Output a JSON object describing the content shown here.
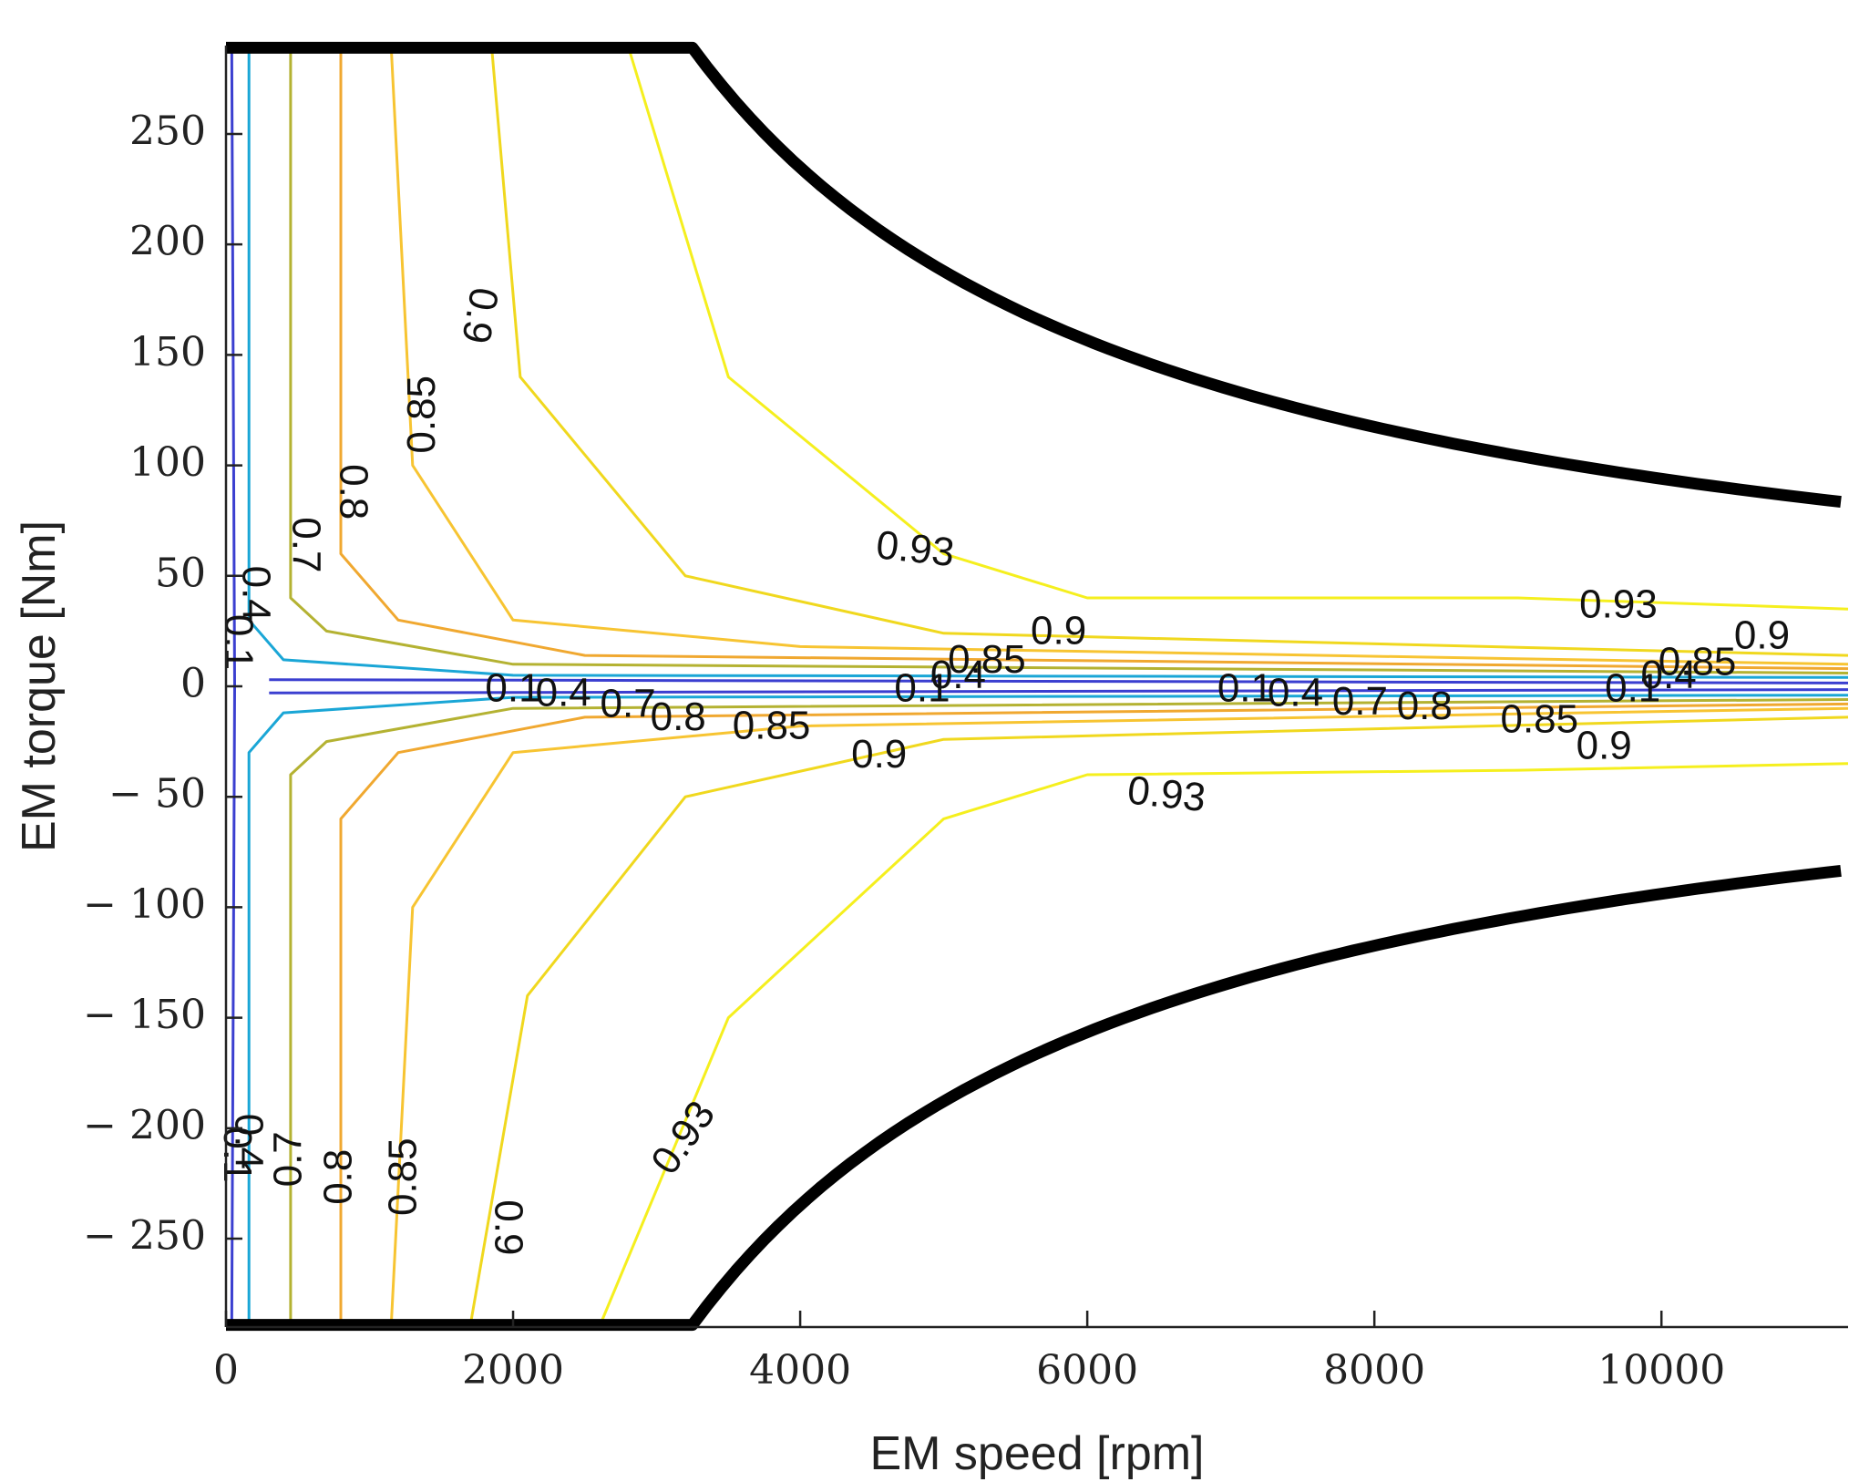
{
  "chart_data": {
    "type": "contour",
    "xlabel": "EM speed [rpm]",
    "ylabel": "EM torque [Nm]",
    "xlim": [
      0,
      11300
    ],
    "ylim": [
      -290,
      290
    ],
    "xticks": [
      0,
      2000,
      4000,
      6000,
      8000,
      10000
    ],
    "xtick_labels": [
      "0",
      "2000",
      "4000",
      "6000",
      "8000",
      "10000"
    ],
    "yticks": [
      250,
      200,
      150,
      100,
      50,
      0,
      -50,
      -100,
      -150,
      -200,
      -250
    ],
    "ytick_labels": [
      "250",
      "200",
      "150",
      "100",
      "50",
      "0",
      "− 50",
      "− 100",
      "− 150",
      "− 200",
      "− 250"
    ],
    "contour_levels": [
      0.1,
      0.4,
      0.7,
      0.8,
      0.85,
      0.9,
      0.93
    ],
    "level_colors": {
      "0.1": "#3b3fd0",
      "0.4": "#1aa6d6",
      "0.7": "#b4b232",
      "0.8": "#f0a830",
      "0.85": "#f7c432",
      "0.9": "#f0d81e",
      "0.93": "#f5ef1e"
    },
    "contours": [
      {
        "level": 0.1,
        "torque": [
          [
            0,
            290
          ],
          [
            40,
            290
          ],
          [
            60,
            0
          ],
          [
            40,
            -290
          ],
          [
            0,
            -290
          ]
        ],
        "center": [
          [
            300,
            3
          ],
          [
            11300,
            1.5
          ]
        ],
        "center_low": [
          [
            300,
            -3
          ],
          [
            11300,
            -1.5
          ]
        ]
      },
      {
        "level": 0.4,
        "speed_pos": [
          [
            160,
            290
          ],
          [
            160,
            30
          ],
          [
            400,
            12
          ],
          [
            2000,
            5
          ],
          [
            11300,
            4
          ]
        ],
        "speed_neg": [
          [
            160,
            -290
          ],
          [
            160,
            -30
          ],
          [
            400,
            -12
          ],
          [
            2000,
            -5
          ],
          [
            11300,
            -4
          ]
        ]
      },
      {
        "level": 0.7,
        "speed_pos": [
          [
            450,
            290
          ],
          [
            450,
            40
          ],
          [
            700,
            25
          ],
          [
            2000,
            10
          ],
          [
            11300,
            6
          ]
        ],
        "speed_neg": [
          [
            450,
            -290
          ],
          [
            450,
            -40
          ],
          [
            700,
            -25
          ],
          [
            2000,
            -10
          ],
          [
            11300,
            -6
          ]
        ]
      },
      {
        "level": 0.8,
        "speed_pos": [
          [
            800,
            290
          ],
          [
            800,
            60
          ],
          [
            1200,
            30
          ],
          [
            2500,
            14
          ],
          [
            11300,
            8
          ]
        ],
        "speed_neg": [
          [
            800,
            -290
          ],
          [
            800,
            -60
          ],
          [
            1200,
            -30
          ],
          [
            2500,
            -14
          ],
          [
            11300,
            -8
          ]
        ]
      },
      {
        "level": 0.85,
        "speed_pos": [
          [
            1150,
            290
          ],
          [
            1300,
            100
          ],
          [
            2000,
            30
          ],
          [
            4000,
            18
          ],
          [
            11300,
            10
          ]
        ],
        "speed_neg": [
          [
            1150,
            -290
          ],
          [
            1300,
            -100
          ],
          [
            2000,
            -30
          ],
          [
            4000,
            -18
          ],
          [
            11300,
            -10
          ]
        ]
      },
      {
        "level": 0.9,
        "speed_pos": [
          [
            1850,
            290
          ],
          [
            2050,
            140
          ],
          [
            3200,
            50
          ],
          [
            5000,
            24
          ],
          [
            11300,
            14
          ]
        ],
        "speed_neg": [
          [
            1700,
            -290
          ],
          [
            2100,
            -140
          ],
          [
            3200,
            -50
          ],
          [
            5000,
            -24
          ],
          [
            11300,
            -14
          ]
        ]
      },
      {
        "level": 0.93,
        "speed_pos": [
          [
            2800,
            290
          ],
          [
            3500,
            140
          ],
          [
            5000,
            60
          ],
          [
            6000,
            40
          ],
          [
            9000,
            40
          ],
          [
            11300,
            35
          ]
        ],
        "speed_neg": [
          [
            2600,
            -290
          ],
          [
            3500,
            -150
          ],
          [
            5000,
            -60
          ],
          [
            6000,
            -40
          ],
          [
            9000,
            -38
          ],
          [
            11300,
            -35
          ]
        ]
      }
    ],
    "max_torque_envelope": {
      "corner_speed": 3250,
      "max_torque": 289,
      "max_speed": 11300
    },
    "contour_labels": [
      {
        "text": "0.9",
        "x": 1750,
        "y": 168,
        "rotate": 100
      },
      {
        "text": "0.85",
        "x": 1380,
        "y": 123,
        "rotate": -90
      },
      {
        "text": "0.8",
        "x": 870,
        "y": 88,
        "rotate": 90
      },
      {
        "text": "0.7",
        "x": 540,
        "y": 64,
        "rotate": 90
      },
      {
        "text": "0.4",
        "x": 190,
        "y": 42,
        "rotate": 90
      },
      {
        "text": "0.1",
        "x": 70,
        "y": 20,
        "rotate": 90
      },
      {
        "text": "0.93",
        "x": 4800,
        "y": 61,
        "rotate": 6
      },
      {
        "text": "0.9",
        "x": 5800,
        "y": 24,
        "rotate": 0
      },
      {
        "text": "0.85",
        "x": 5300,
        "y": 11,
        "rotate": 0
      },
      {
        "text": "0.4",
        "x": 5100,
        "y": 4,
        "rotate": 0
      },
      {
        "text": "0.1",
        "x": 4850,
        "y": -2,
        "rotate": 0
      },
      {
        "text": "0.93",
        "x": 9700,
        "y": 36,
        "rotate": 0
      },
      {
        "text": "0.9",
        "x": 10700,
        "y": 22,
        "rotate": 0
      },
      {
        "text": "0.85",
        "x": 10250,
        "y": 10,
        "rotate": 0
      },
      {
        "text": "0.4",
        "x": 10050,
        "y": 4,
        "rotate": 0
      },
      {
        "text": "0.1",
        "x": 9800,
        "y": -2,
        "rotate": 0
      },
      {
        "text": "0.1",
        "x": 2000,
        "y": -2,
        "rotate": 0
      },
      {
        "text": "0.4",
        "x": 2350,
        "y": -4,
        "rotate": 0
      },
      {
        "text": "0.7",
        "x": 2800,
        "y": -9,
        "rotate": 0
      },
      {
        "text": "0.8",
        "x": 3150,
        "y": -15,
        "rotate": 0
      },
      {
        "text": "0.85",
        "x": 3800,
        "y": -19,
        "rotate": 0
      },
      {
        "text": "0.9",
        "x": 4550,
        "y": -32,
        "rotate": 0
      },
      {
        "text": "0.93",
        "x": 6550,
        "y": -50,
        "rotate": 6
      },
      {
        "text": "0.1",
        "x": 7100,
        "y": -2,
        "rotate": 0
      },
      {
        "text": "0.4",
        "x": 7450,
        "y": -4,
        "rotate": 0
      },
      {
        "text": "0.7",
        "x": 7900,
        "y": -8,
        "rotate": 0
      },
      {
        "text": "0.8",
        "x": 8350,
        "y": -10,
        "rotate": 0
      },
      {
        "text": "0.85",
        "x": 9150,
        "y": -16,
        "rotate": 0
      },
      {
        "text": "0.9",
        "x": 9600,
        "y": -28,
        "rotate": 0
      },
      {
        "text": "0.93",
        "x": 3200,
        "y": -205,
        "rotate": -55
      },
      {
        "text": "0.9",
        "x": 1950,
        "y": -245,
        "rotate": 90
      },
      {
        "text": "0.85",
        "x": 1250,
        "y": -222,
        "rotate": -90
      },
      {
        "text": "0.8",
        "x": 800,
        "y": -222,
        "rotate": -90
      },
      {
        "text": "0.7",
        "x": 450,
        "y": -214,
        "rotate": -90
      },
      {
        "text": "0.4",
        "x": 140,
        "y": -206,
        "rotate": 90
      },
      {
        "text": "0.1",
        "x": 60,
        "y": -212,
        "rotate": 90
      }
    ]
  }
}
